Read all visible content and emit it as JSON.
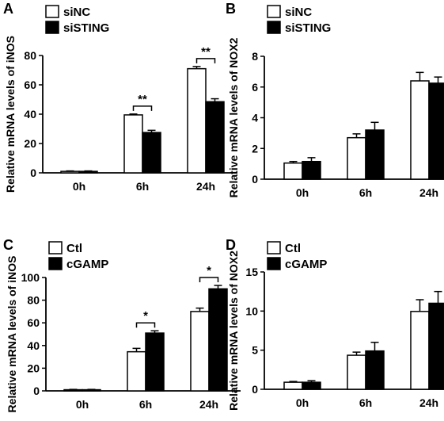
{
  "chart_data": [
    {
      "panel_label": "A",
      "type": "bar",
      "ylabel": "Relative mRNA levels of iNOS",
      "ylim": [
        0,
        80
      ],
      "yticks": [
        0,
        20,
        40,
        60,
        80
      ],
      "categories": [
        "0h",
        "6h",
        "24h"
      ],
      "legend_position": "top-left",
      "series": [
        {
          "name": "siNC",
          "fill": "#ffffff",
          "values": [
            1,
            39.5,
            71
          ],
          "errors": [
            0.3,
            0.6,
            1.5
          ]
        },
        {
          "name": "siSTING",
          "fill": "#000000",
          "values": [
            1,
            27.5,
            48.5
          ],
          "errors": [
            0.3,
            1.5,
            2
          ]
        }
      ],
      "significance": [
        {
          "category_index": 1,
          "label": "**"
        },
        {
          "category_index": 2,
          "label": "**"
        }
      ]
    },
    {
      "panel_label": "B",
      "type": "bar",
      "ylabel": "Relative mRNA levels of NOX2",
      "ylim": [
        0,
        8
      ],
      "yticks": [
        0,
        2,
        4,
        6,
        8
      ],
      "categories": [
        "0h",
        "6h",
        "24h"
      ],
      "legend_position": "top-left",
      "series": [
        {
          "name": "siNC",
          "fill": "#ffffff",
          "values": [
            1.05,
            2.7,
            6.4
          ],
          "errors": [
            0.1,
            0.25,
            0.55
          ]
        },
        {
          "name": "siSTING",
          "fill": "#000000",
          "values": [
            1.15,
            3.2,
            6.25
          ],
          "errors": [
            0.25,
            0.5,
            0.4
          ]
        }
      ],
      "significance": []
    },
    {
      "panel_label": "C",
      "type": "bar",
      "ylabel": "Relative mRNA levels of iNOS",
      "ylim": [
        0,
        100
      ],
      "yticks": [
        0,
        20,
        40,
        60,
        80,
        100
      ],
      "categories": [
        "0h",
        "6h",
        "24h"
      ],
      "legend_position": "top-left",
      "series": [
        {
          "name": "Ctl",
          "fill": "#ffffff",
          "values": [
            1,
            34.5,
            70
          ],
          "errors": [
            0.3,
            3,
            3
          ]
        },
        {
          "name": "cGAMP",
          "fill": "#000000",
          "values": [
            1,
            51,
            90
          ],
          "errors": [
            0.3,
            2,
            3
          ]
        }
      ],
      "significance": [
        {
          "category_index": 1,
          "label": "*"
        },
        {
          "category_index": 2,
          "label": "*"
        }
      ]
    },
    {
      "panel_label": "D",
      "type": "bar",
      "ylabel": "Relative mRNA levels of NOX2",
      "ylim": [
        0,
        15
      ],
      "yticks": [
        0,
        5,
        10,
        15
      ],
      "categories": [
        "0h",
        "6h",
        "24h"
      ],
      "legend_position": "top-left",
      "series": [
        {
          "name": "Ctl",
          "fill": "#ffffff",
          "values": [
            0.9,
            4.35,
            9.95
          ],
          "errors": [
            0.1,
            0.4,
            1.5
          ]
        },
        {
          "name": "cGAMP",
          "fill": "#000000",
          "values": [
            0.9,
            4.9,
            11
          ],
          "errors": [
            0.2,
            1.1,
            1.5
          ]
        }
      ],
      "significance": []
    }
  ]
}
